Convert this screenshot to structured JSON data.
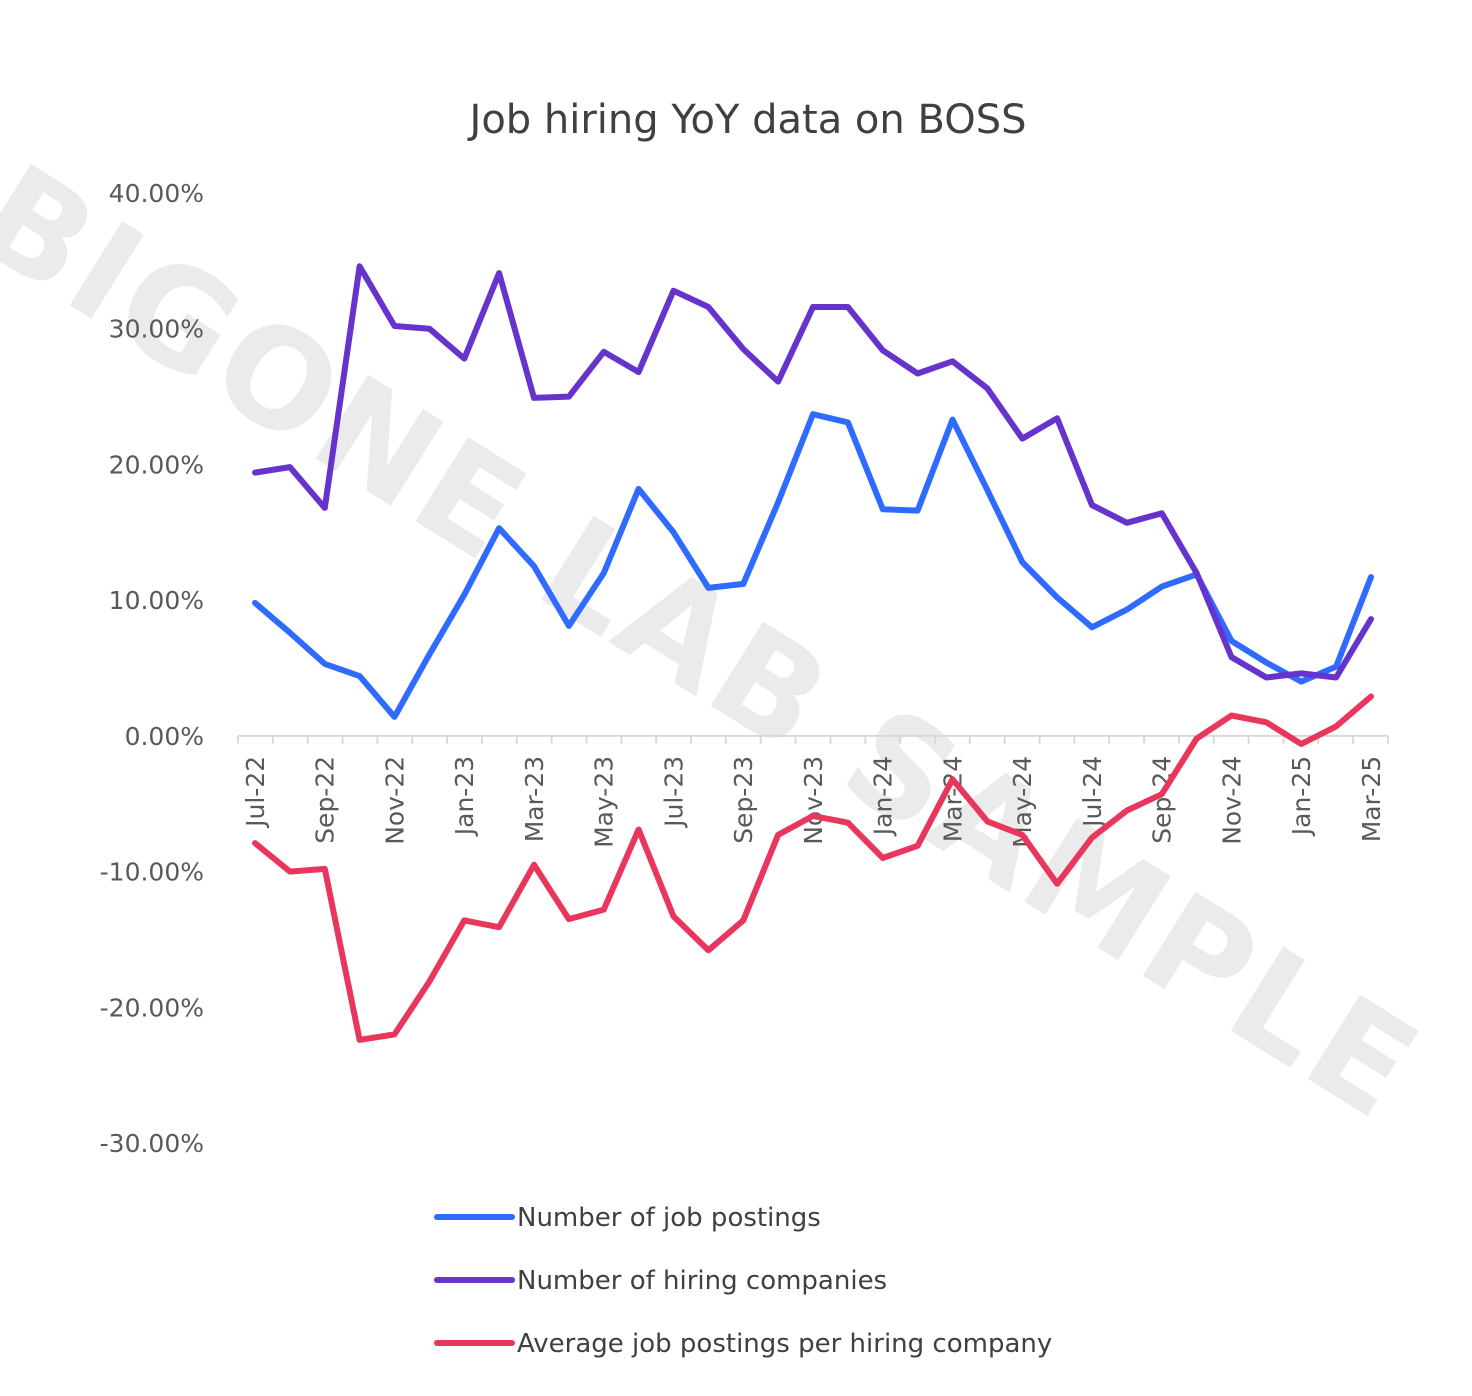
{
  "chart_data": {
    "type": "line",
    "title": "Job hiring YoY data on BOSS",
    "watermark": "BIGONE LAB SAMPLE",
    "xlabel": "",
    "ylabel": "",
    "ylim": [
      -30,
      40
    ],
    "y_ticks": [
      40,
      30,
      20,
      10,
      0,
      -10,
      -20,
      -30
    ],
    "y_tick_labels": [
      "40.00%",
      "30.00%",
      "20.00%",
      "10.00%",
      "0.00%",
      "-10.00%",
      "-20.00%",
      "-30.00%"
    ],
    "x": [
      "Jul-22",
      "Aug-22",
      "Sep-22",
      "Oct-22",
      "Nov-22",
      "Dec-22",
      "Jan-23",
      "Feb-23",
      "Mar-23",
      "Apr-23",
      "May-23",
      "Jun-23",
      "Jul-23",
      "Aug-23",
      "Sep-23",
      "Oct-23",
      "Nov-23",
      "Dec-23",
      "Jan-24",
      "Feb-24",
      "Mar-24",
      "Apr-24",
      "May-24",
      "Jun-24",
      "Jul-24",
      "Aug-24",
      "Sep-24",
      "Oct-24",
      "Nov-24",
      "Dec-24",
      "Jan-25",
      "Feb-25",
      "Mar-25"
    ],
    "x_tick_labels": [
      "Jul-22",
      "Sep-22",
      "Nov-22",
      "Jan-23",
      "Mar-23",
      "May-23",
      "Jul-23",
      "Sep-23",
      "Nov-23",
      "Jan-24",
      "Mar-24",
      "May-24",
      "Jul-24",
      "Sep-24",
      "Nov-24",
      "Jan-25",
      "Mar-25"
    ],
    "grid": false,
    "legend_position": "bottom",
    "series": [
      {
        "name": "Number of job postings",
        "color": "#2f6bff",
        "values": [
          9.8,
          7.6,
          5.3,
          4.4,
          1.4,
          6.0,
          10.4,
          15.3,
          12.5,
          8.1,
          12.0,
          18.2,
          15.0,
          10.9,
          11.2,
          17.2,
          23.7,
          23.1,
          16.7,
          16.6,
          23.3,
          18.1,
          12.8,
          10.2,
          8.0,
          9.3,
          11.0,
          11.9,
          7.0,
          5.4,
          4.0,
          5.1,
          11.7
        ]
      },
      {
        "name": "Number of hiring companies",
        "color": "#6633cc",
        "values": [
          19.4,
          19.8,
          16.8,
          34.6,
          30.2,
          30.0,
          27.8,
          34.1,
          24.9,
          25.0,
          28.3,
          26.8,
          32.8,
          31.6,
          28.5,
          26.1,
          31.6,
          31.6,
          28.4,
          26.7,
          27.6,
          25.6,
          21.9,
          23.4,
          17.0,
          15.7,
          16.4,
          12.0,
          5.8,
          4.3,
          4.6,
          4.3,
          8.6
        ]
      },
      {
        "name": "Average job postings per hiring company",
        "color": "#e8365d",
        "values": [
          -7.9,
          -10.0,
          -9.8,
          -22.4,
          -22.0,
          -18.1,
          -13.6,
          -14.1,
          -9.5,
          -13.5,
          -12.8,
          -6.9,
          -13.3,
          -15.8,
          -13.6,
          -7.3,
          -5.9,
          -6.4,
          -9.0,
          -8.1,
          -3.2,
          -6.3,
          -7.3,
          -10.9,
          -7.5,
          -5.5,
          -4.3,
          -0.2,
          1.5,
          1.0,
          -0.6,
          0.7,
          2.9
        ]
      }
    ]
  }
}
